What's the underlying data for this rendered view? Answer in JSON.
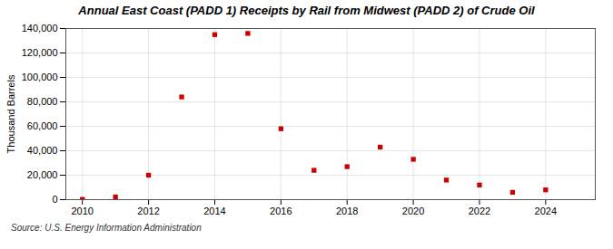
{
  "chart_data": {
    "type": "scatter",
    "title": "Annual East Coast (PADD 1) Receipts by Rail from Midwest (PADD 2) of Crude Oil",
    "ylabel": "Thousand Barrels",
    "source": "Source: U.S. Energy Information Administration",
    "x": [
      2010,
      2011,
      2012,
      2013,
      2014,
      2015,
      2016,
      2017,
      2018,
      2019,
      2020,
      2021,
      2022,
      2023,
      2024
    ],
    "values": [
      200,
      2200,
      20000,
      84000,
      135000,
      136000,
      58000,
      24000,
      27000,
      43000,
      33000,
      16000,
      12000,
      6000,
      8000
    ],
    "color": "#cc0000",
    "marker": "square",
    "xlim": [
      2009.5,
      2025.5
    ],
    "xticks": [
      2010,
      2012,
      2014,
      2016,
      2018,
      2020,
      2022,
      2024
    ],
    "ylim": [
      0,
      140000
    ],
    "yticks": [
      0,
      {
        "value": 20000,
        "label": "20,000"
      },
      {
        "value": 40000,
        "label": "40,000"
      },
      {
        "value": 60000,
        "label": "60,000"
      },
      {
        "value": 80000,
        "label": "80,000"
      },
      {
        "value": 100000,
        "label": "100,000"
      },
      {
        "value": 120000,
        "label": "120,000"
      },
      {
        "value": 140000,
        "label": "140,000"
      }
    ],
    "grid": true
  }
}
